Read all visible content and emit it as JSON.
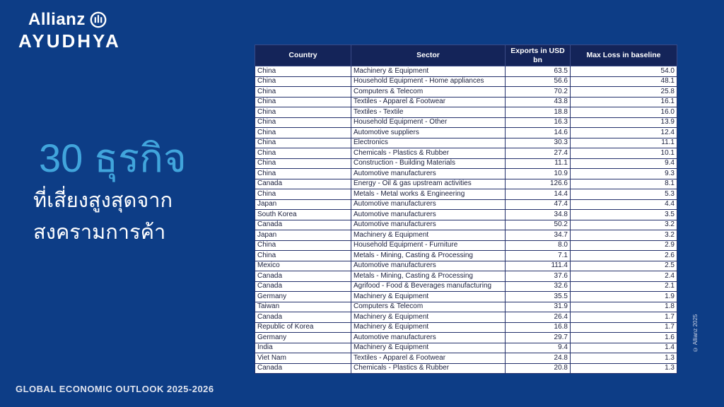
{
  "slide": {
    "background_color": "#0d3d86",
    "accent_blue": "#41a5dc",
    "header_bg": "#142459"
  },
  "logo": {
    "brand": "Allianz",
    "sub_brand": "AYUDHYA",
    "icon": "allianz-eagle-circle-icon"
  },
  "title": {
    "line1": "30 ธุรกิจ",
    "line2": "ที่เสี่ยงสูงสุดจาก",
    "line3": "สงครามการค้า"
  },
  "footer": {
    "label": "GLOBAL ECONOMIC OUTLOOK 2025-2026"
  },
  "copyright": {
    "label": "© Allianz 2025"
  },
  "table": {
    "headers": [
      "Country",
      "Sector",
      "Exports in USD bn",
      "Max Loss in baseline"
    ],
    "rows": [
      {
        "country": "China",
        "sector": "Machinery & Equipment",
        "exports": "63.5",
        "max_loss": "54.0"
      },
      {
        "country": "China",
        "sector": "Household Equipment - Home appliances",
        "exports": "56.6",
        "max_loss": "48.1"
      },
      {
        "country": "China",
        "sector": "Computers & Telecom",
        "exports": "70.2",
        "max_loss": "25.8"
      },
      {
        "country": "China",
        "sector": "Textiles - Apparel & Footwear",
        "exports": "43.8",
        "max_loss": "16.1"
      },
      {
        "country": "China",
        "sector": "Textiles - Textile",
        "exports": "18.8",
        "max_loss": "16.0"
      },
      {
        "country": "China",
        "sector": "Household Equipment - Other",
        "exports": "16.3",
        "max_loss": "13.9"
      },
      {
        "country": "China",
        "sector": "Automotive suppliers",
        "exports": "14.6",
        "max_loss": "12.4"
      },
      {
        "country": "China",
        "sector": "Electronics",
        "exports": "30.3",
        "max_loss": "11.1"
      },
      {
        "country": "China",
        "sector": "Chemicals - Plastics & Rubber",
        "exports": "27.4",
        "max_loss": "10.1"
      },
      {
        "country": "China",
        "sector": "Construction - Building Materials",
        "exports": "11.1",
        "max_loss": "9.4"
      },
      {
        "country": "China",
        "sector": "Automotive manufacturers",
        "exports": "10.9",
        "max_loss": "9.3"
      },
      {
        "country": "Canada",
        "sector": "Energy - Oil & gas upstream activities",
        "exports": "126.6",
        "max_loss": "8.1"
      },
      {
        "country": "China",
        "sector": "Metals - Metal works & Engineering",
        "exports": "14.4",
        "max_loss": "5.3"
      },
      {
        "country": "Japan",
        "sector": "Automotive manufacturers",
        "exports": "47.4",
        "max_loss": "4.4"
      },
      {
        "country": "South Korea",
        "sector": "Automotive manufacturers",
        "exports": "34.8",
        "max_loss": "3.5"
      },
      {
        "country": "Canada",
        "sector": "Automotive manufacturers",
        "exports": "50.2",
        "max_loss": "3.2"
      },
      {
        "country": "Japan",
        "sector": "Machinery & Equipment",
        "exports": "34.7",
        "max_loss": "3.2"
      },
      {
        "country": "China",
        "sector": "Household Equipment - Furniture",
        "exports": "8.0",
        "max_loss": "2.9"
      },
      {
        "country": "China",
        "sector": "Metals - Mining, Casting & Processing",
        "exports": "7.1",
        "max_loss": "2.6"
      },
      {
        "country": "Mexico",
        "sector": "Automotive manufacturers",
        "exports": "111.4",
        "max_loss": "2.5"
      },
      {
        "country": "Canada",
        "sector": "Metals - Mining, Casting & Processing",
        "exports": "37.6",
        "max_loss": "2.4"
      },
      {
        "country": "Canada",
        "sector": "Agrifood - Food & Beverages manufacturing",
        "exports": "32.6",
        "max_loss": "2.1"
      },
      {
        "country": "Germany",
        "sector": "Machinery & Equipment",
        "exports": "35.5",
        "max_loss": "1.9"
      },
      {
        "country": "Taiwan",
        "sector": "Computers & Telecom",
        "exports": "31.9",
        "max_loss": "1.8"
      },
      {
        "country": "Canada",
        "sector": "Machinery & Equipment",
        "exports": "26.4",
        "max_loss": "1.7"
      },
      {
        "country": "Republic of Korea",
        "sector": "Machinery & Equipment",
        "exports": "16.8",
        "max_loss": "1.7"
      },
      {
        "country": "Germany",
        "sector": "Automotive manufacturers",
        "exports": "29.7",
        "max_loss": "1.6"
      },
      {
        "country": "India",
        "sector": "Machinery & Equipment",
        "exports": "9.4",
        "max_loss": "1.4"
      },
      {
        "country": "Viet Nam",
        "sector": "Textiles - Apparel & Footwear",
        "exports": "24.8",
        "max_loss": "1.3"
      },
      {
        "country": "Canada",
        "sector": "Chemicals - Plastics & Rubber",
        "exports": "20.8",
        "max_loss": "1.3"
      }
    ]
  }
}
